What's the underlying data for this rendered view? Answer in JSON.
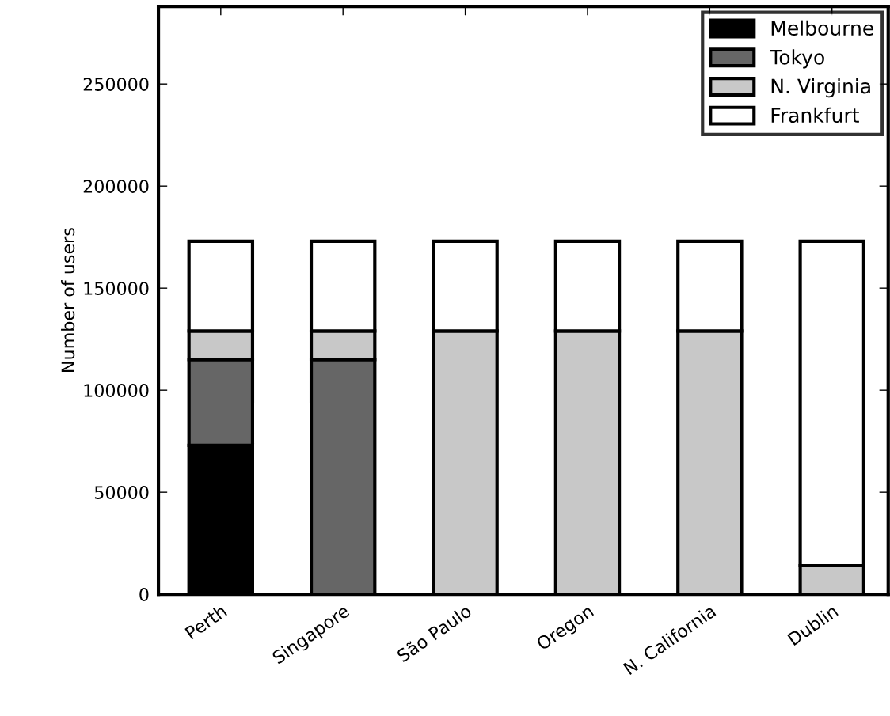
{
  "chart_data": {
    "type": "bar",
    "stacked": true,
    "ylabel": "Number of users",
    "categories": [
      "Perth",
      "Singapore",
      "São Paulo",
      "Oregon",
      "N. California",
      "Dublin"
    ],
    "series": [
      {
        "name": "Melbourne",
        "color": "#000000",
        "values": [
          73000,
          0,
          0,
          0,
          0,
          0
        ]
      },
      {
        "name": "Tokyo",
        "color": "#666666",
        "values": [
          42000,
          115000,
          0,
          0,
          0,
          0
        ]
      },
      {
        "name": "N. Virginia",
        "color": "#c8c8c8",
        "values": [
          14000,
          14000,
          129000,
          129000,
          129000,
          14000
        ]
      },
      {
        "name": "Frankfurt",
        "color": "#ffffff",
        "values": [
          44000,
          44000,
          44000,
          44000,
          44000,
          159000
        ]
      }
    ],
    "ylim": [
      0,
      288000
    ],
    "yticks": [
      0,
      50000,
      100000,
      150000,
      200000,
      250000
    ],
    "grid": false,
    "legend": "top right"
  }
}
